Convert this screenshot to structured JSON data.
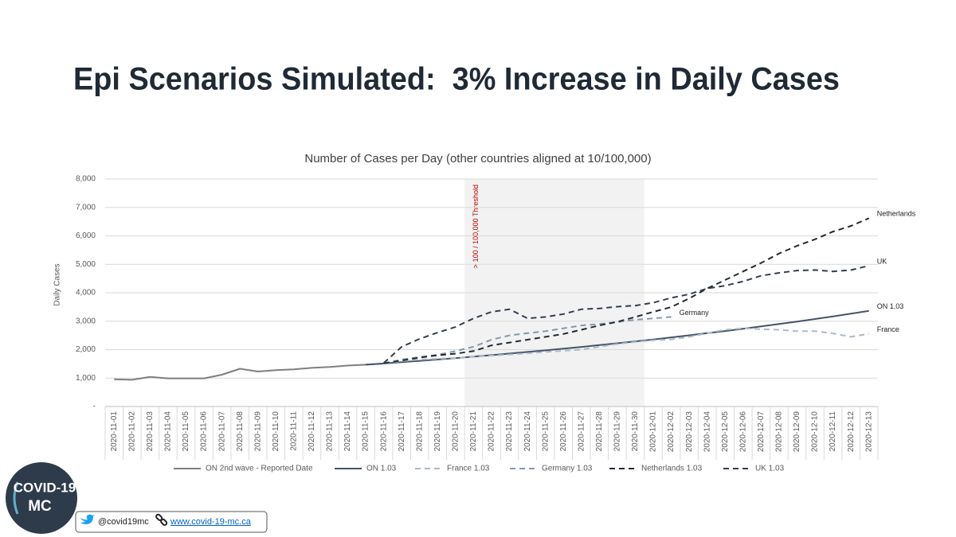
{
  "title": "Epi Scenarios Simulated:  3% Increase in Daily Cases",
  "chart_data": {
    "type": "line",
    "title": "Number of Cases per Day (other countries aligned at 10/100,000)",
    "y_label": "Daily Cases",
    "categories": [
      "2020-11-01",
      "2020-11-02",
      "2020-11-03",
      "2020-11-04",
      "2020-11-05",
      "2020-11-06",
      "2020-11-07",
      "2020-11-08",
      "2020-11-09",
      "2020-11-10",
      "2020-11-11",
      "2020-11-12",
      "2020-11-13",
      "2020-11-14",
      "2020-11-15",
      "2020-11-16",
      "2020-11-17",
      "2020-11-18",
      "2020-11-19",
      "2020-11-20",
      "2020-11-21",
      "2020-11-22",
      "2020-11-23",
      "2020-11-24",
      "2020-11-25",
      "2020-11-26",
      "2020-11-27",
      "2020-11-28",
      "2020-11-29",
      "2020-11-30",
      "2020-12-01",
      "2020-12-02",
      "2020-12-03",
      "2020-12-04",
      "2020-12-05",
      "2020-12-06",
      "2020-12-07",
      "2020-12-08",
      "2020-12-09",
      "2020-12-10",
      "2020-12-11",
      "2020-12-12",
      "2020-12-13"
    ],
    "ylim": [
      0,
      8000
    ],
    "yticks": [
      {
        "value": 0,
        "label": "-"
      },
      {
        "value": 1000,
        "label": "1,000"
      },
      {
        "value": 2000,
        "label": "2,000"
      },
      {
        "value": 3000,
        "label": "3,000"
      },
      {
        "value": 4000,
        "label": "4,000"
      },
      {
        "value": 5000,
        "label": "5,000"
      },
      {
        "value": 6000,
        "label": "6,000"
      },
      {
        "value": 7000,
        "label": "7,000"
      },
      {
        "value": 8000,
        "label": "8,000"
      }
    ],
    "grid": true,
    "legend": "bottom",
    "shaded_region": {
      "from": "2020-11-21",
      "to": "2020-11-30",
      "label": "> 100 / 100,000 Threshold",
      "color": "#f2f2f2"
    },
    "series": [
      {
        "name": "ON 2nd wave - Reported Date",
        "color": "#7f7f7f",
        "dashed": false,
        "values": [
          960,
          940,
          1040,
          990,
          990,
          990,
          1120,
          1330,
          1230,
          1280,
          1310,
          1360,
          1390,
          1440,
          1470,
          1510,
          null,
          null,
          null,
          null,
          null,
          null,
          null,
          null,
          null,
          null,
          null,
          null,
          null,
          null,
          null,
          null,
          null,
          null,
          null,
          null,
          null,
          null,
          null,
          null,
          null,
          null,
          null
        ]
      },
      {
        "name": "ON 1.03",
        "color": "#44546a",
        "dashed": false,
        "end_label": "ON 1.03",
        "values": [
          null,
          null,
          null,
          null,
          null,
          null,
          null,
          null,
          null,
          null,
          null,
          null,
          null,
          null,
          1470,
          1514,
          1560,
          1606,
          1654,
          1704,
          1755,
          1808,
          1862,
          1918,
          1976,
          2035,
          2096,
          2159,
          2224,
          2290,
          2359,
          2430,
          2503,
          2578,
          2655,
          2735,
          2817,
          2901,
          2988,
          3078,
          3170,
          3266,
          3363
        ]
      },
      {
        "name": "France 1.03",
        "color": "#adb9ca",
        "dashed": true,
        "end_label": "France",
        "values": [
          null,
          null,
          null,
          null,
          null,
          null,
          null,
          null,
          null,
          null,
          null,
          null,
          null,
          null,
          null,
          1510,
          1600,
          1650,
          1680,
          1710,
          1750,
          1790,
          1830,
          1870,
          1920,
          1960,
          2000,
          2100,
          2200,
          2270,
          2330,
          2360,
          2450,
          2580,
          2700,
          2750,
          2720,
          2700,
          2650,
          2650,
          2570,
          2450,
          2560
        ]
      },
      {
        "name": "Germany 1.03",
        "color": "#8497b0",
        "dashed": true,
        "end_label": "Germany",
        "values": [
          null,
          null,
          null,
          null,
          null,
          null,
          null,
          null,
          null,
          null,
          null,
          null,
          null,
          null,
          null,
          1520,
          1650,
          1740,
          1820,
          1950,
          2100,
          2350,
          2500,
          2580,
          2650,
          2750,
          2850,
          2900,
          2970,
          3050,
          3100,
          3150,
          null,
          null,
          null,
          null,
          null,
          null,
          null,
          null,
          null,
          null,
          null
        ]
      },
      {
        "name": "Netherlands 1.03",
        "color": "#222a35",
        "dashed": true,
        "end_label": "Netherlands",
        "values": [
          null,
          null,
          null,
          null,
          null,
          null,
          null,
          null,
          null,
          null,
          null,
          null,
          null,
          null,
          null,
          1520,
          1620,
          1720,
          1800,
          1860,
          1950,
          2150,
          2250,
          2350,
          2450,
          2550,
          2700,
          2850,
          2980,
          3150,
          3330,
          3500,
          3800,
          4150,
          4450,
          4750,
          5050,
          5380,
          5650,
          5880,
          6150,
          6350,
          6620
        ]
      },
      {
        "name": "UK 1.03",
        "color": "#333f50",
        "dashed": true,
        "end_label": "UK",
        "values": [
          null,
          null,
          null,
          null,
          null,
          null,
          null,
          null,
          null,
          null,
          null,
          null,
          null,
          null,
          null,
          1530,
          2100,
          2380,
          2600,
          2800,
          3100,
          3330,
          3420,
          3100,
          3150,
          3250,
          3420,
          3450,
          3510,
          3550,
          3650,
          3820,
          3950,
          4150,
          4250,
          4400,
          4600,
          4700,
          4780,
          4800,
          4750,
          4800,
          4950
        ]
      }
    ]
  },
  "footer": {
    "logo_line1": "COVID-19",
    "logo_line2": "MC",
    "twitter": "@covid19mc",
    "website": "www.covid-19-mc.ca"
  }
}
